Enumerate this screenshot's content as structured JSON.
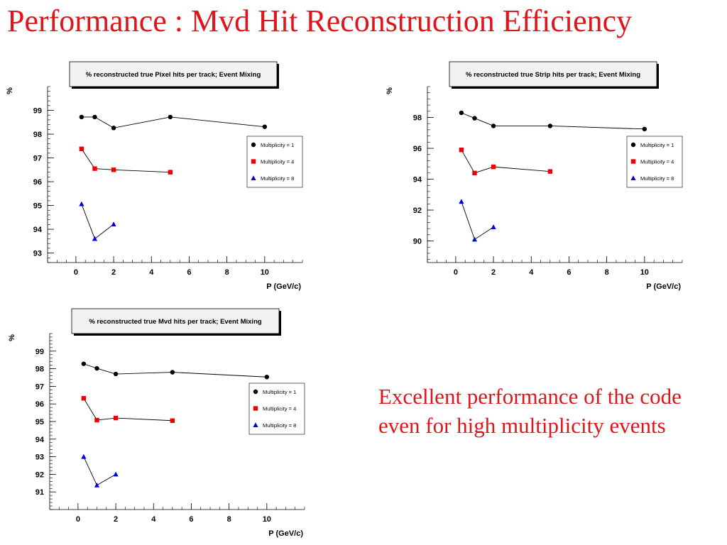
{
  "slide": {
    "title": "Performance : Mvd Hit Reconstruction Efficiency",
    "caption": "Excellent performance of the code even for high multiplicity events",
    "accent_color": "#e0151b"
  },
  "legend_entries": [
    "Multiplicity = 1",
    "Multiplicity = 4",
    "Multiplicity = 8"
  ],
  "series_style": [
    {
      "marker": "circle",
      "color": "#000000"
    },
    {
      "marker": "square",
      "color": "#ee0000"
    },
    {
      "marker": "triangle",
      "color": "#0000dd"
    }
  ],
  "chart_data": [
    {
      "type": "line",
      "title": "% reconstructed true Pixel hits per track; Event Mixing",
      "xlabel": "P (GeV/c)",
      "ylabel": "%",
      "xlim": [
        -1.5,
        12
      ],
      "ylim": [
        92.6,
        100
      ],
      "xticks": [
        0,
        2,
        4,
        6,
        8,
        10
      ],
      "yticks": [
        93,
        94,
        95,
        96,
        97,
        98,
        99
      ],
      "legend_position": "right",
      "series": [
        {
          "name": "Multiplicity = 1",
          "x": [
            0.3,
            1,
            2,
            5,
            10
          ],
          "y": [
            98.72,
            98.72,
            98.26,
            98.72,
            98.31
          ]
        },
        {
          "name": "Multiplicity = 4",
          "x": [
            0.3,
            1,
            2,
            5
          ],
          "y": [
            97.38,
            96.55,
            96.5,
            96.4
          ]
        },
        {
          "name": "Multiplicity = 8",
          "x": [
            0.3,
            1,
            2
          ],
          "y": [
            95.06,
            93.6,
            94.21
          ]
        }
      ]
    },
    {
      "type": "line",
      "title": "% reconstructed true Strip hits per track; Event Mixing",
      "xlabel": "P (GeV/c)",
      "ylabel": "%",
      "xlim": [
        -1.5,
        12
      ],
      "ylim": [
        88.6,
        100
      ],
      "xticks": [
        0,
        2,
        4,
        6,
        8,
        10
      ],
      "yticks": [
        90,
        92,
        94,
        96,
        98
      ],
      "legend_position": "right",
      "series": [
        {
          "name": "Multiplicity = 1",
          "x": [
            0.3,
            1,
            2,
            5,
            10
          ],
          "y": [
            98.3,
            97.95,
            97.45,
            97.45,
            97.25
          ]
        },
        {
          "name": "Multiplicity = 4",
          "x": [
            0.3,
            1,
            2,
            5
          ],
          "y": [
            95.9,
            94.4,
            94.8,
            94.5
          ]
        },
        {
          "name": "Multiplicity = 8",
          "x": [
            0.3,
            1,
            2
          ],
          "y": [
            92.55,
            90.1,
            90.9
          ]
        }
      ]
    },
    {
      "type": "line",
      "title": "% reconstructed true Mvd hits per track; Event Mixing",
      "xlabel": "P (GeV/c)",
      "ylabel": "%",
      "xlim": [
        -1.5,
        12
      ],
      "ylim": [
        90.0,
        100
      ],
      "xticks": [
        0,
        2,
        4,
        6,
        8,
        10
      ],
      "yticks": [
        91,
        92,
        93,
        94,
        95,
        96,
        97,
        98,
        99
      ],
      "legend_position": "right",
      "series": [
        {
          "name": "Multiplicity = 1",
          "x": [
            0.3,
            1,
            2,
            5,
            10
          ],
          "y": [
            98.28,
            98.02,
            97.7,
            97.8,
            97.53
          ]
        },
        {
          "name": "Multiplicity = 4",
          "x": [
            0.3,
            1,
            2,
            5
          ],
          "y": [
            96.32,
            95.08,
            95.2,
            95.05
          ]
        },
        {
          "name": "Multiplicity = 8",
          "x": [
            0.3,
            1,
            2
          ],
          "y": [
            93.0,
            91.38,
            92.0
          ]
        }
      ]
    }
  ]
}
